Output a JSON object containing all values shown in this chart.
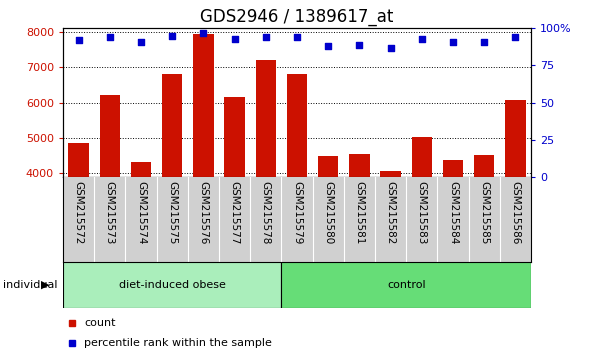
{
  "title": "GDS2946 / 1389617_at",
  "categories": [
    "GSM215572",
    "GSM215573",
    "GSM215574",
    "GSM215575",
    "GSM215576",
    "GSM215577",
    "GSM215578",
    "GSM215579",
    "GSM215580",
    "GSM215581",
    "GSM215582",
    "GSM215583",
    "GSM215584",
    "GSM215585",
    "GSM215586"
  ],
  "counts": [
    4850,
    6220,
    4310,
    6820,
    7950,
    6150,
    7200,
    6820,
    4490,
    4560,
    4080,
    5040,
    4380,
    4510,
    6070
  ],
  "percentile_ranks": [
    92,
    94,
    91,
    95,
    97,
    93,
    94,
    94,
    88,
    89,
    87,
    93,
    91,
    91,
    94
  ],
  "bar_color": "#cc1100",
  "dot_color": "#0000cc",
  "ylim_left": [
    3900,
    8100
  ],
  "ylim_right": [
    0,
    100
  ],
  "yticks_left": [
    4000,
    5000,
    6000,
    7000,
    8000
  ],
  "yticks_right": [
    0,
    25,
    50,
    75,
    100
  ],
  "group1_label": "diet-induced obese",
  "group1_count": 7,
  "group2_label": "control",
  "group2_count": 8,
  "group1_color": "#aaeebb",
  "group2_color": "#66dd77",
  "individual_label": "individual",
  "legend_count_label": "count",
  "legend_pct_label": "percentile rank within the sample",
  "label_bg_color": "#d0d0d0",
  "plot_bg": "#ffffff",
  "title_fontsize": 12,
  "tick_fontsize": 8,
  "label_fontsize": 7.5
}
